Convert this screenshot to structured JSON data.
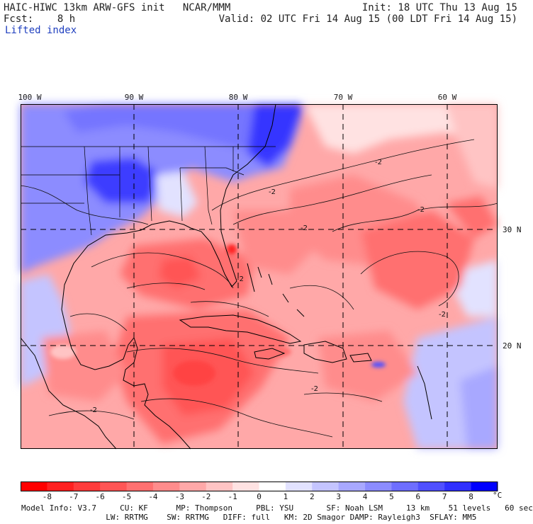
{
  "header": {
    "model_line": "HAIC-HIWC 13km ARW-GFS init   NCAR/MMM",
    "fcst_line": "Fcst:    8 h",
    "init_line": "Init: 18 UTC Thu 13 Aug 15",
    "valid_line": "Valid: 02 UTC Fri 14 Aug 15 (00 LDT Fri 14 Aug 15)",
    "field": "Lifted index"
  },
  "map": {
    "lon_labels": [
      "100 W",
      "90 W",
      "80 W",
      "70 W",
      "60 W"
    ],
    "lat_labels": [
      "30 N",
      "20 N"
    ],
    "contour_label": "-2"
  },
  "colorbar": {
    "labels": [
      "-8",
      "-7",
      "-6",
      "-5",
      "-4",
      "-3",
      "-2",
      "-1",
      "0",
      "1",
      "2",
      "3",
      "4",
      "5",
      "6",
      "7",
      "8"
    ],
    "unit": "°C",
    "colors": [
      "#ff0000",
      "#ff2020",
      "#ff3c3c",
      "#ff5555",
      "#ff7070",
      "#ff8c8c",
      "#ffa8a8",
      "#ffc4c4",
      "#ffe2e2",
      "#ffffff",
      "#e2e2ff",
      "#c4c4ff",
      "#a8a8ff",
      "#8c8cff",
      "#6e6eff",
      "#5050ff",
      "#3030ff",
      "#0000ff"
    ]
  },
  "footer": {
    "line1": "Model Info: V3.7     CU: KF      MP: Thompson     PBL: YSU       SF: Noah LSM     13 km    51 levels   60 sec",
    "line2": "                  LW: RRTMG    SW: RRTMG   DIFF: full   KM: 2D Smagor DAMP: Rayleigh3  SFLAY: MM5"
  }
}
